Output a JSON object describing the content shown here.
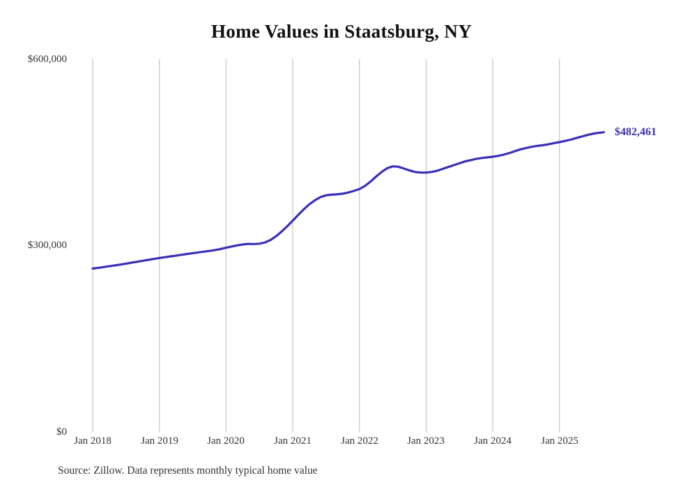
{
  "chart_data": {
    "type": "line",
    "title": "Home Values in Staatsburg, NY",
    "series_name": "Typical home value",
    "x_tick_labels": [
      "Jan 2018",
      "Jan 2019",
      "Jan 2020",
      "Jan 2021",
      "Jan 2022",
      "Jan 2023",
      "Jan 2024",
      "Jan 2025"
    ],
    "y_tick_labels": [
      "$600,000",
      "$300,000",
      "$0"
    ],
    "ylim": [
      0,
      600000
    ],
    "grid": "vertical-only",
    "legend": "none",
    "line_color": "#3a2fb8",
    "grid_color": "#c9c9c9",
    "end_label": "$482,461",
    "latest_value": 482461,
    "months": [
      "2018-01",
      "2018-02",
      "2018-03",
      "2018-04",
      "2018-05",
      "2018-06",
      "2018-07",
      "2018-08",
      "2018-09",
      "2018-10",
      "2018-11",
      "2018-12",
      "2019-01",
      "2019-02",
      "2019-03",
      "2019-04",
      "2019-05",
      "2019-06",
      "2019-07",
      "2019-08",
      "2019-09",
      "2019-10",
      "2019-11",
      "2019-12",
      "2020-01",
      "2020-02",
      "2020-03",
      "2020-04",
      "2020-05",
      "2020-06",
      "2020-07",
      "2020-08",
      "2020-09",
      "2020-10",
      "2020-11",
      "2020-12",
      "2021-01",
      "2021-02",
      "2021-03",
      "2021-04",
      "2021-05",
      "2021-06",
      "2021-07",
      "2021-08",
      "2021-09",
      "2021-10",
      "2021-11",
      "2021-12",
      "2022-01",
      "2022-02",
      "2022-03",
      "2022-04",
      "2022-05",
      "2022-06",
      "2022-07",
      "2022-08",
      "2022-09",
      "2022-10",
      "2022-11",
      "2022-12",
      "2023-01",
      "2023-02",
      "2023-03",
      "2023-04",
      "2023-05",
      "2023-06",
      "2023-07",
      "2023-08",
      "2023-09",
      "2023-10",
      "2023-11",
      "2023-12",
      "2024-01",
      "2024-02",
      "2024-03",
      "2024-04",
      "2024-05",
      "2024-06",
      "2024-07",
      "2024-08",
      "2024-09",
      "2024-10",
      "2024-11",
      "2024-12",
      "2025-01",
      "2025-02",
      "2025-03",
      "2025-04",
      "2025-05",
      "2025-06",
      "2025-07",
      "2025-08",
      "2025-09"
    ],
    "values": [
      263000,
      264200,
      265500,
      266800,
      268100,
      269500,
      271000,
      272500,
      274000,
      275500,
      277000,
      278500,
      280000,
      281300,
      282600,
      283900,
      285200,
      286500,
      287800,
      289000,
      290200,
      291400,
      292800,
      294500,
      296500,
      298500,
      300300,
      301800,
      302800,
      302500,
      303000,
      305000,
      309000,
      315000,
      322500,
      331000,
      340000,
      349500,
      358500,
      366500,
      373000,
      378000,
      381000,
      382000,
      382500,
      383500,
      385500,
      388000,
      391000,
      396000,
      403000,
      411000,
      418500,
      424500,
      427500,
      427000,
      424000,
      421000,
      418500,
      417500,
      417500,
      418500,
      420500,
      423500,
      426500,
      429500,
      432500,
      435500,
      437500,
      439500,
      441000,
      442000,
      443000,
      444500,
      446500,
      449000,
      452000,
      455000,
      457000,
      459000,
      460500,
      461500,
      463000,
      465000,
      466500,
      468500,
      470500,
      473000,
      475500,
      478000,
      480000,
      481500,
      482461
    ]
  },
  "footer": {
    "source": "Source: Zillow. Data represents monthly typical home value"
  }
}
